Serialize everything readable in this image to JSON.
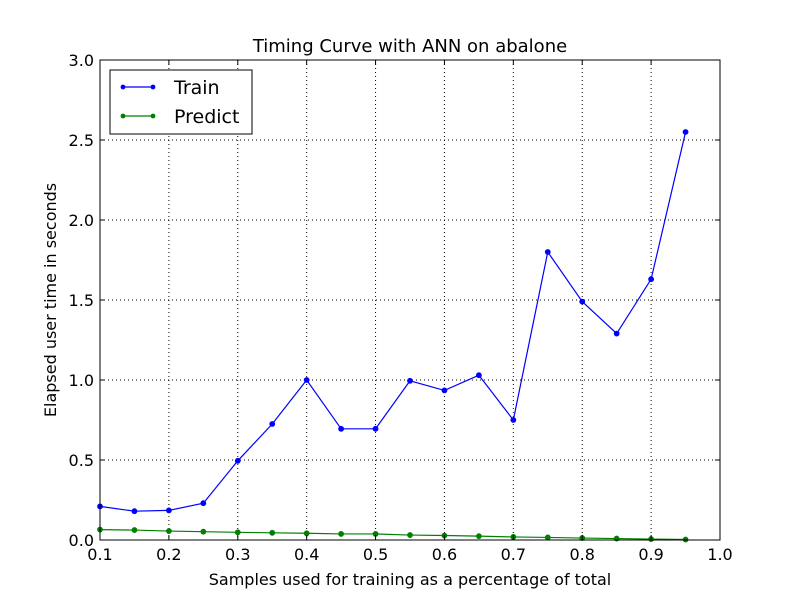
{
  "chart_data": {
    "type": "line",
    "title": "Timing Curve with ANN on abalone",
    "xlabel": "Samples used for training as a percentage of total",
    "ylabel": "Elapsed user time in seconds",
    "xlim": [
      0.1,
      1.0
    ],
    "ylim": [
      0.0,
      3.0
    ],
    "xticks": [
      "0.1",
      "0.2",
      "0.3",
      "0.4",
      "0.5",
      "0.6",
      "0.7",
      "0.8",
      "0.9",
      "1.0"
    ],
    "yticks": [
      "0.0",
      "0.5",
      "1.0",
      "1.5",
      "2.0",
      "2.5",
      "3.0"
    ],
    "grid": true,
    "legend_position": "top-left",
    "x": [
      0.1,
      0.15,
      0.2,
      0.25,
      0.3,
      0.35,
      0.4,
      0.45,
      0.5,
      0.55,
      0.6,
      0.65,
      0.7,
      0.75,
      0.8,
      0.85,
      0.9,
      0.95
    ],
    "series": [
      {
        "name": "Train",
        "color": "#0000ff",
        "values": [
          0.21,
          0.18,
          0.185,
          0.23,
          0.495,
          0.725,
          1.0,
          0.695,
          0.695,
          0.995,
          0.935,
          1.03,
          0.75,
          1.8,
          1.49,
          1.29,
          1.63,
          2.55
        ]
      },
      {
        "name": "Predict",
        "color": "#008000",
        "values": [
          0.065,
          0.062,
          0.056,
          0.052,
          0.048,
          0.045,
          0.042,
          0.038,
          0.038,
          0.031,
          0.028,
          0.024,
          0.019,
          0.016,
          0.012,
          0.009,
          0.006,
          0.003
        ]
      }
    ]
  }
}
